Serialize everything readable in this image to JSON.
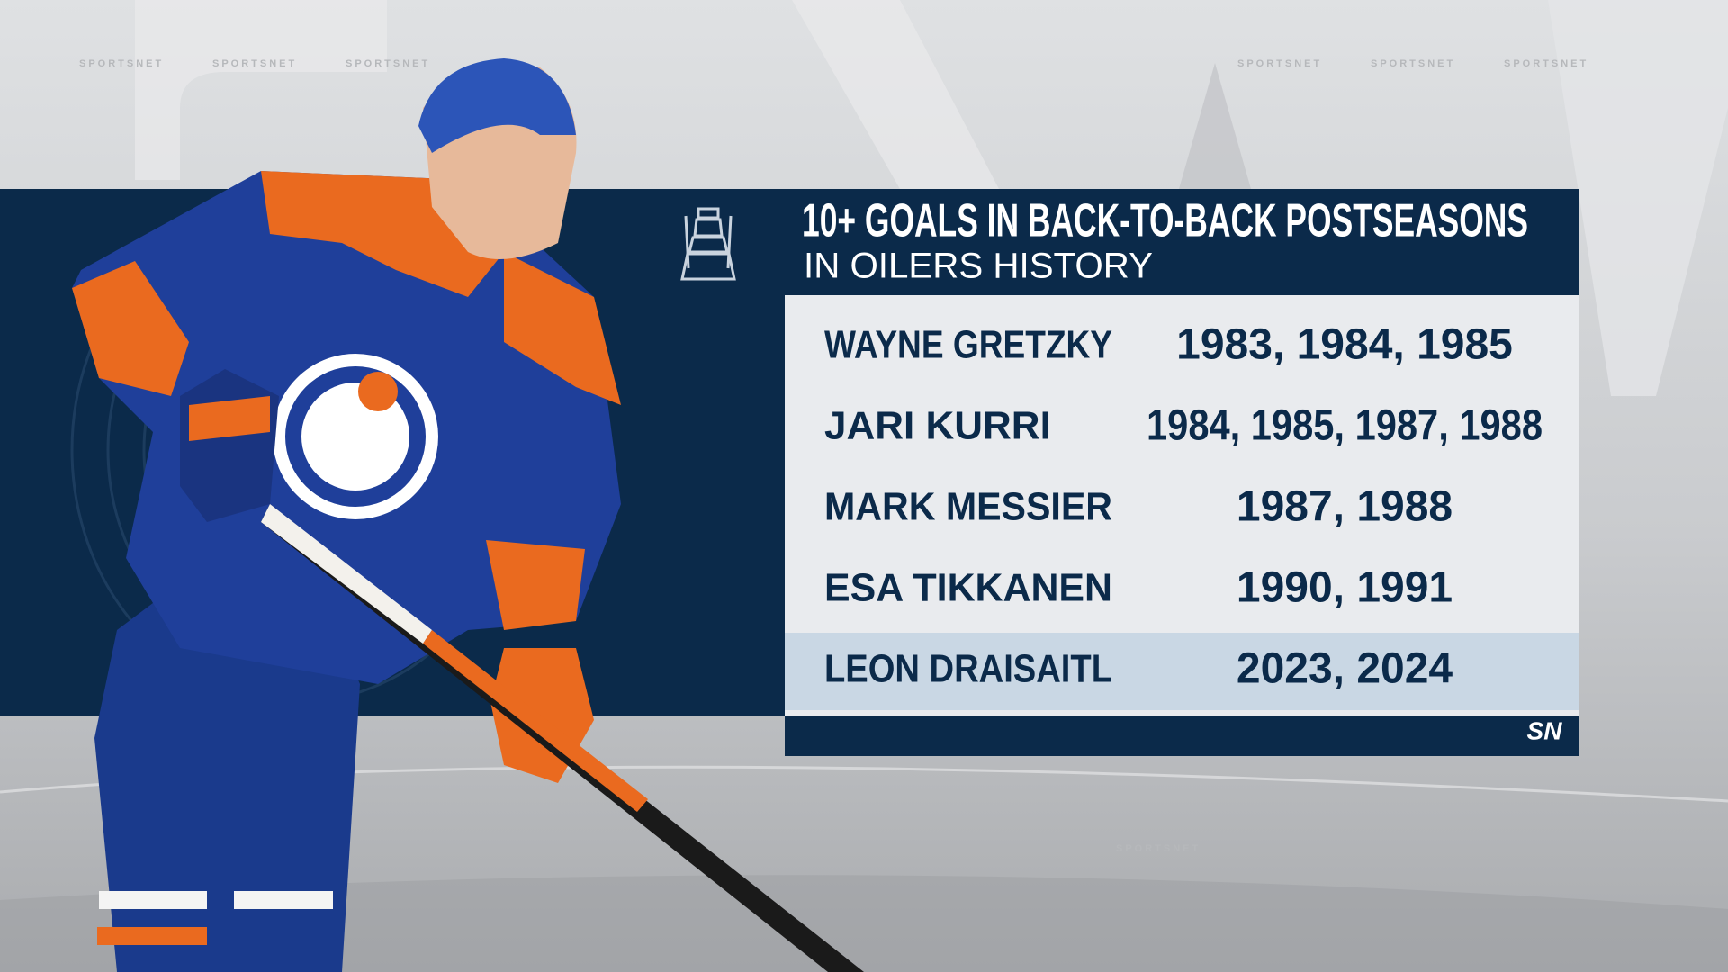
{
  "header": {
    "title": "10+ GOALS IN BACK-TO-BACK POSTSEASONS",
    "subtitle": "IN OILERS HISTORY"
  },
  "table": {
    "rows": [
      [
        "WAYNE GRETZKY",
        "1983, 1984, 1985"
      ],
      [
        "JARI KURRI",
        "1984, 1985, 1987, 1988"
      ],
      [
        "MARK MESSIER",
        "1987, 1988"
      ],
      [
        "ESA TIKKANEN",
        "1990, 1991"
      ],
      [
        "LEON DRAISAITL",
        "2023, 2024"
      ]
    ],
    "highlighted_row": 4
  },
  "watermark": "SPORTSNET",
  "logo": "SN"
}
